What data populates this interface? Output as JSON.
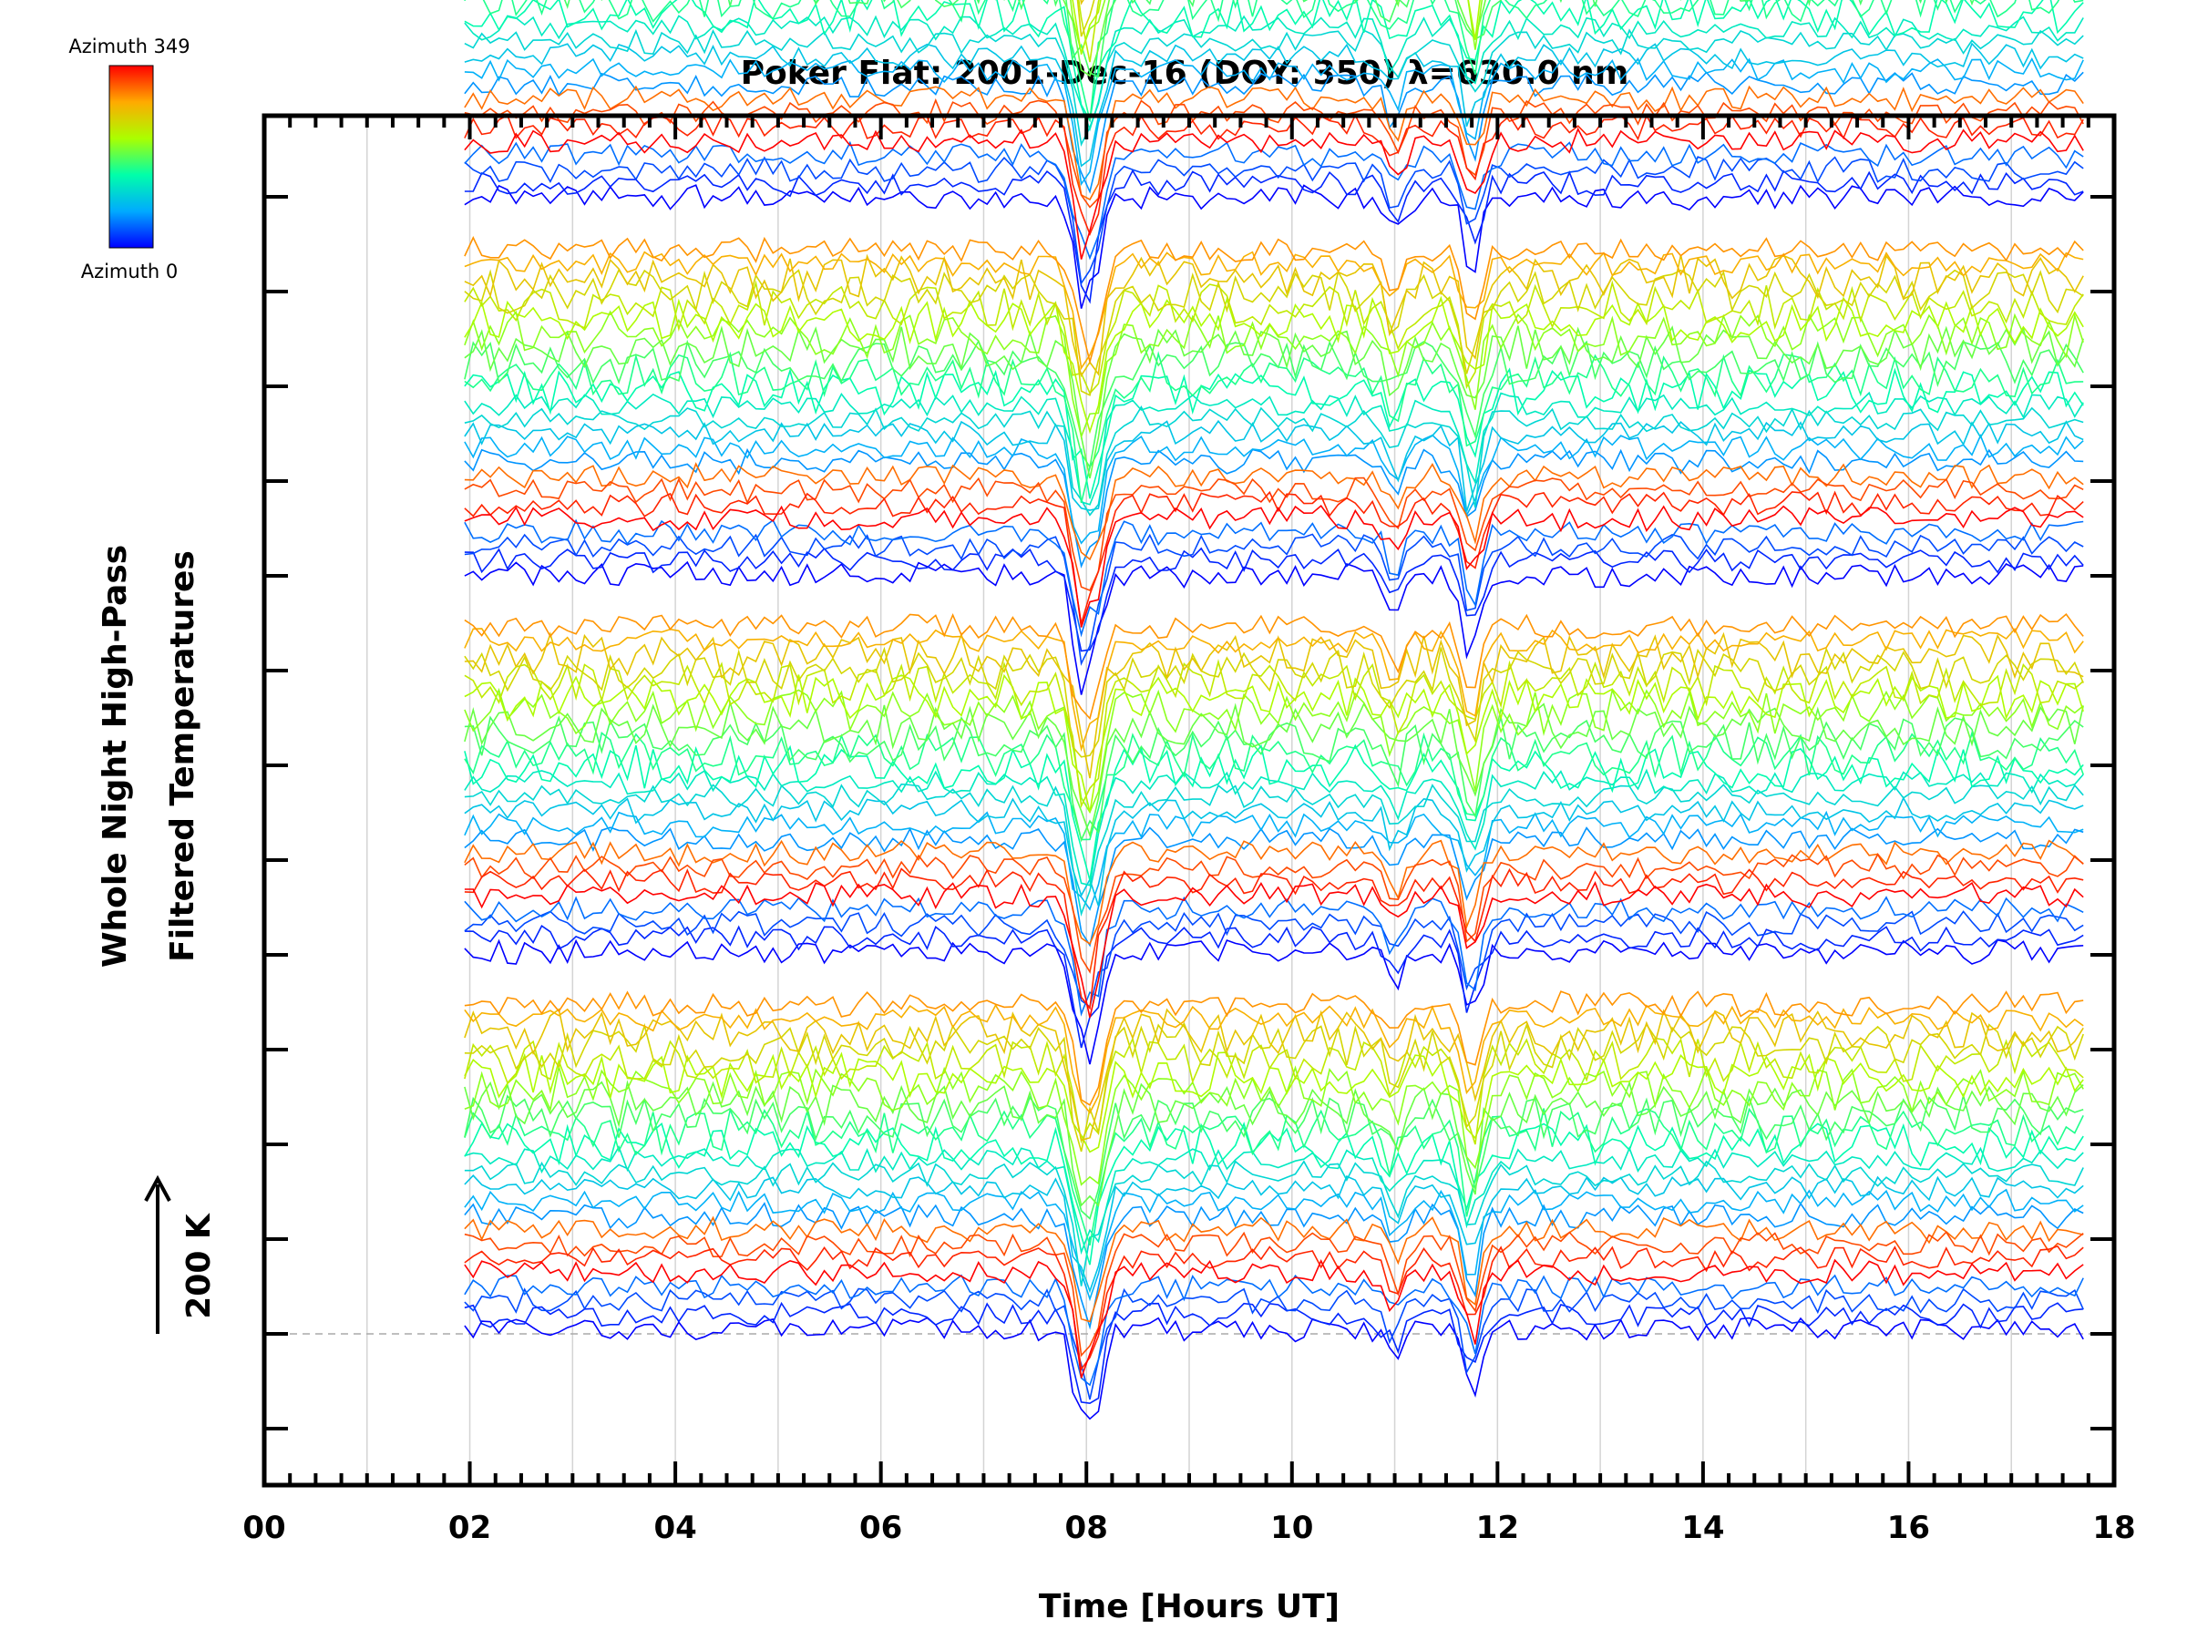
{
  "chart_data": {
    "type": "line",
    "title": "Poker Flat: 2001-Dec-16 (DOY: 350) λ=630.0 nm",
    "xlabel": "Time [Hours UT]",
    "ylabel_line1": "Whole Night High-Pass",
    "ylabel_line2": "Filtered Temperatures",
    "scale_label": "200 K",
    "scale_kelvin": 200,
    "xlim": [
      0,
      18
    ],
    "x_ticks": [
      "00",
      "02",
      "04",
      "06",
      "08",
      "10",
      "12",
      "14",
      "16",
      "18"
    ],
    "x_range_of_data": [
      1.95,
      17.7
    ],
    "colorbar": {
      "top_label": "Azimuth 349",
      "bottom_label": "Azimuth 0",
      "colors": [
        "#0000ff",
        "#00aaff",
        "#00ffaa",
        "#aaff00",
        "#ffaa00",
        "#ff0000"
      ]
    },
    "series_groups": 4,
    "series_per_group": 24,
    "group_offset_K": 400,
    "dips": [
      {
        "hour": 7.95,
        "depth_K": 110
      },
      {
        "hour": 8.1,
        "depth_K": 80
      },
      {
        "hour": 11.75,
        "depth_K": 90
      },
      {
        "hour": 11.0,
        "depth_K": 45
      }
    ]
  }
}
